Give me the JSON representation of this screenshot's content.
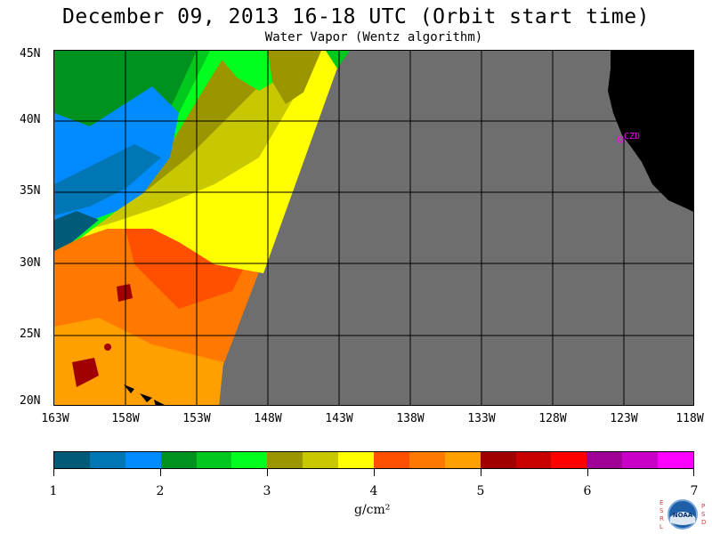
{
  "title": "December 09, 2013  16-18 UTC  (Orbit start time)",
  "subtitle": "Water Vapor (Wentz algorithm)",
  "map": {
    "lat_labels": [
      "45N",
      "40N",
      "35N",
      "30N",
      "25N",
      "20N"
    ],
    "lon_labels": [
      "163W",
      "158W",
      "153W",
      "148W",
      "143W",
      "138W",
      "133W",
      "128W",
      "123W",
      "118W"
    ],
    "station_label": "CZD",
    "station_color": "#ff00ff",
    "no_data_color": "#6e6e6e",
    "land_color": "#000000"
  },
  "colorbar": {
    "colors": [
      "#005a78",
      "#0076b4",
      "#008cff",
      "#00921e",
      "#00c81e",
      "#00ff1e",
      "#9b9600",
      "#c8c800",
      "#ffff00",
      "#ff5000",
      "#ff7800",
      "#ffa000",
      "#a00000",
      "#c80000",
      "#ff0000",
      "#a00096",
      "#c800c8",
      "#ff00ff"
    ],
    "tick_labels": [
      "1",
      "2",
      "3",
      "4",
      "5",
      "6",
      "7"
    ],
    "unit": "g/cm²"
  },
  "logo": {
    "left_letters": "ESRL",
    "right_letters": "PSD",
    "center_text": "NOAA"
  }
}
